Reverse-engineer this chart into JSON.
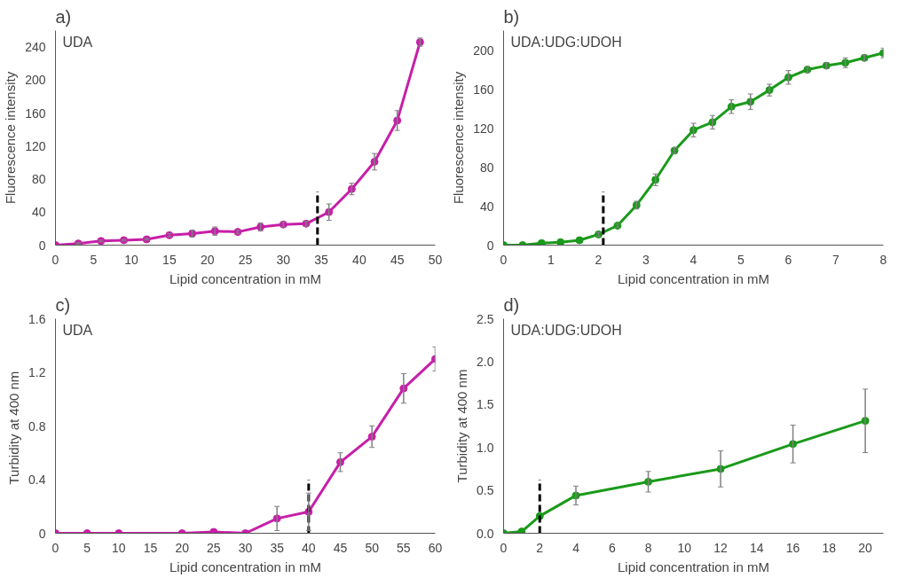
{
  "chart_data": [
    {
      "type": "line",
      "title": "a)",
      "xlabel": "Lipid concentration in mM",
      "ylabel": "Fluorescence intensity",
      "annotations": [
        "UDA"
      ],
      "marker": "circle",
      "line_style": "solid",
      "grid": false,
      "x": [
        0,
        3,
        6,
        9,
        12,
        15,
        18,
        21,
        24,
        27,
        30,
        33,
        36,
        39,
        42,
        45,
        48
      ],
      "series": [
        {
          "color": "#c71fa8",
          "values": [
            0,
            2,
            5,
            6,
            7,
            12,
            14,
            17,
            16,
            22,
            25,
            26,
            40,
            68,
            101,
            151,
            246
          ],
          "errors": [
            null,
            1,
            1,
            1,
            1,
            2,
            4,
            5,
            2,
            5,
            3,
            3,
            10,
            7,
            10,
            12,
            5
          ]
        }
      ],
      "xlim": [
        0,
        50
      ],
      "xticks": [
        0,
        5,
        10,
        15,
        20,
        25,
        30,
        35,
        40,
        45,
        50
      ],
      "ylim": [
        0,
        260
      ],
      "yticks": [
        0,
        40,
        80,
        120,
        160,
        200,
        240
      ],
      "ref_lines": [
        {
          "axis": "x",
          "value": 34.5,
          "color": "#000000",
          "line_style": "dashed"
        }
      ]
    },
    {
      "type": "line",
      "title": "b)",
      "xlabel": "Lipid concentration in mM",
      "ylabel": "Fluorescence intensity",
      "annotations": [
        "UDA:UDG:UDOH"
      ],
      "marker": "circle",
      "line_style": "solid",
      "grid": false,
      "x": [
        0,
        0.4,
        0.8,
        1.2,
        1.6,
        2.0,
        2.4,
        2.8,
        3.2,
        3.6,
        4.0,
        4.4,
        4.8,
        5.2,
        5.6,
        6.0,
        6.4,
        6.8,
        7.2,
        7.6,
        8.0
      ],
      "series": [
        {
          "color": "#1a9a1a",
          "values": [
            0,
            0,
            2,
            3,
            5,
            11,
            20,
            41,
            67,
            97,
            118,
            126,
            142,
            147,
            159,
            172,
            180,
            184,
            187,
            192,
            197
          ],
          "errors": [
            null,
            null,
            null,
            null,
            null,
            2,
            2,
            4,
            6,
            3,
            7,
            7,
            7,
            8,
            6,
            7,
            3,
            3,
            5,
            3,
            5
          ]
        }
      ],
      "xlim": [
        0,
        8
      ],
      "xticks": [
        0,
        1,
        2,
        3,
        4,
        5,
        6,
        7,
        8
      ],
      "ylim": [
        0,
        220
      ],
      "yticks": [
        0,
        40,
        80,
        120,
        160,
        200
      ],
      "ref_lines": [
        {
          "axis": "x",
          "value": 2.1,
          "color": "#000000",
          "line_style": "dashed"
        }
      ]
    },
    {
      "type": "line",
      "title": "c)",
      "xlabel": "Lipid concentration in mM",
      "ylabel": "Turbidity  at 400 nm",
      "annotations": [
        "UDA"
      ],
      "marker": "circle",
      "line_style": "solid",
      "grid": false,
      "x": [
        0,
        5,
        10,
        20,
        25,
        30,
        35,
        40,
        45,
        50,
        55,
        60
      ],
      "series": [
        {
          "color": "#c71fa8",
          "values": [
            0,
            0,
            0,
            0,
            0.01,
            0,
            0.11,
            0.16,
            0.53,
            0.72,
            1.08,
            1.3
          ],
          "errors": [
            null,
            null,
            null,
            null,
            null,
            null,
            0.09,
            0.14,
            0.07,
            0.08,
            0.11,
            0.09
          ]
        }
      ],
      "xlim": [
        0,
        60
      ],
      "xticks": [
        0,
        5,
        10,
        15,
        20,
        25,
        30,
        35,
        40,
        45,
        50,
        55,
        60
      ],
      "ylim": [
        0,
        1.6
      ],
      "yticks": [
        0,
        0.4,
        0.8,
        1.2,
        1.6
      ],
      "ref_lines": [
        {
          "axis": "x",
          "value": 40,
          "color": "#000000",
          "line_style": "dashed"
        }
      ]
    },
    {
      "type": "line",
      "title": "d)",
      "xlabel": "Lipid concentration in mM",
      "ylabel": "Turbidity at 400 nm",
      "annotations": [
        "UDA:UDG:UDOH"
      ],
      "marker": "circle",
      "line_style": "solid",
      "grid": false,
      "x": [
        0,
        1,
        2,
        4,
        8,
        12,
        16,
        20
      ],
      "series": [
        {
          "color": "#1a9a1a",
          "values": [
            0,
            0.02,
            0.2,
            0.44,
            0.6,
            0.75,
            1.04,
            1.31
          ],
          "errors": [
            null,
            null,
            null,
            0.11,
            0.12,
            0.21,
            0.22,
            0.37
          ]
        }
      ],
      "xlim": [
        0,
        21
      ],
      "xticks": [
        0,
        2,
        4,
        6,
        8,
        10,
        12,
        14,
        16,
        18,
        20
      ],
      "ylim": [
        0,
        2.5
      ],
      "yticks": [
        {
          "value": 0,
          "label": "0.0"
        },
        {
          "value": 0.5,
          "label": "0.5"
        },
        {
          "value": 1,
          "label": "1.0"
        },
        {
          "value": 1.5,
          "label": "1.5"
        },
        {
          "value": 2,
          "label": "2.0"
        },
        {
          "value": 2.5,
          "label": "2.5"
        }
      ],
      "ref_lines": [
        {
          "axis": "x",
          "value": 2,
          "color": "#000000",
          "line_style": "dashed"
        }
      ]
    }
  ]
}
